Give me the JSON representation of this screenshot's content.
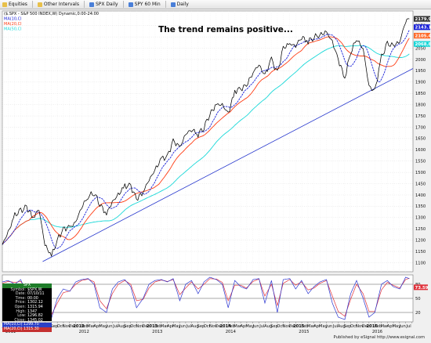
{
  "toolbar": {
    "items": [
      {
        "label": "Equities",
        "icon": "folder-icon"
      },
      {
        "label": "Other Intervals",
        "icon": "folder-icon"
      },
      {
        "label": "SPX Daily",
        "icon": "chart-icon"
      },
      {
        "label": "SPY 60 Min",
        "icon": "chart-icon"
      },
      {
        "label": "Daily",
        "icon": "chart-icon"
      }
    ]
  },
  "chart_title": "The trend remains positive...",
  "legend": {
    "symbol_line": "($.SPX - S&P 500 INDEX,W) Dynamic,0:00-24:00",
    "ma10": "MA(10,Cl",
    "ma20": "MA(20,Cl",
    "ma50": "MA(50,Cl"
  },
  "colors": {
    "price": "#000000",
    "ma10": "#1a22d8",
    "ma20": "#ff3b12",
    "ma50": "#19d8d8",
    "trendline": "#2233cc",
    "oscillator_a": "#2a35d0",
    "oscillator_b": "#e0303a"
  },
  "price_tags": [
    {
      "value": "2179.98",
      "bg": "#333333",
      "fg": "#ffffff"
    },
    {
      "value": "2143.13",
      "bg": "#1a22d8",
      "fg": "#ffffff"
    },
    {
      "value": "2105.46",
      "bg": "#ff6a2a",
      "fg": "#ffffff"
    },
    {
      "value": "2068.81",
      "bg": "#19d8d8",
      "fg": "#ffffff"
    }
  ],
  "info_panel": {
    "header": "SPX",
    "rows": [
      {
        "k": "Symbol",
        "v": "$SPX,W"
      },
      {
        "k": "Date",
        "v": "07/10/11"
      },
      {
        "k": "Time",
        "v": "00:00"
      },
      {
        "k": "Price",
        "v": "1302.12"
      },
      {
        "k": "Open",
        "v": "1315.94"
      },
      {
        "k": "High",
        "v": "1347"
      },
      {
        "k": "Low",
        "v": "1296.82"
      },
      {
        "k": "Close",
        "v": "1345.02"
      }
    ],
    "ma1_label": "MA(10,Cl)",
    "ma1_value": "1299.70",
    "ma2_label": "MA(20,Cl)",
    "ma2_value": "1315.30"
  },
  "oscillator_tag": "73.59",
  "published": "Published by eSignal http://www.esignal.com",
  "chart_data": {
    "type": "line",
    "title": "The trend remains positive...",
    "y_axis_ticks": [
      1100,
      1150,
      1200,
      1250,
      1300,
      1350,
      1400,
      1450,
      1500,
      1550,
      1600,
      1650,
      1700,
      1750,
      1800,
      1850,
      1900,
      1950,
      2000,
      2050,
      2100,
      2150
    ],
    "ylim": [
      1060,
      2215
    ],
    "x_range_years": [
      2011.0,
      2016.6
    ],
    "x_month_labels": [
      "Jan",
      "Mar",
      "May",
      "Jul",
      "Sep",
      "Nov",
      "2012",
      "Mar",
      "May",
      "Jul",
      "Sep",
      "Nov",
      "2013",
      "Mar",
      "May",
      "Jul",
      "Sep",
      "Nov",
      "2014",
      "Mar",
      "May",
      "Jul",
      "Sep",
      "Nov",
      "2015",
      "Mar",
      "May",
      "Jul",
      "Sep",
      "Nov",
      "2016",
      "Mar",
      "May",
      "Jul"
    ],
    "x_year_labels": [
      "2011",
      "2012",
      "2013",
      "2014",
      "2015",
      "2016"
    ],
    "x_month_sequence": [
      "Jan",
      "Feb",
      "Mar",
      "Apr",
      "May",
      "Jun",
      "Jul",
      "Aug",
      "Sep",
      "Oct",
      "Nov",
      "Dec",
      "Jan",
      "Feb",
      "Mar",
      "Apr",
      "May",
      "Jun",
      "Jul",
      "Aug",
      "Sep",
      "Oct",
      "Nov",
      "Dec",
      "Jan",
      "Feb",
      "Mar",
      "Apr",
      "May",
      "Jun",
      "Jul",
      "Aug",
      "Sep",
      "Oct",
      "Nov",
      "Dec",
      "Jan",
      "Feb",
      "Mar",
      "Apr",
      "May",
      "Jun",
      "Jul",
      "Aug",
      "Sep",
      "Oct",
      "Nov",
      "Dec",
      "Jan",
      "Feb",
      "Mar",
      "Apr",
      "May",
      "Jun",
      "Jul",
      "Aug",
      "Sep",
      "Oct",
      "Nov",
      "Dec",
      "Jan",
      "Feb",
      "Mar",
      "Apr",
      "May",
      "Jun",
      "Jul",
      "Aug"
    ],
    "series": [
      {
        "name": "$SPX,W",
        "t": [
          2011.0,
          2011.08,
          2011.17,
          2011.25,
          2011.33,
          2011.42,
          2011.5,
          2011.58,
          2011.67,
          2011.75,
          2011.83,
          2011.92,
          2012.0,
          2012.08,
          2012.17,
          2012.25,
          2012.33,
          2012.42,
          2012.5,
          2012.58,
          2012.67,
          2012.75,
          2012.83,
          2012.92,
          2013.0,
          2013.08,
          2013.17,
          2013.25,
          2013.33,
          2013.42,
          2013.5,
          2013.58,
          2013.67,
          2013.75,
          2013.83,
          2013.92,
          2014.0,
          2014.08,
          2014.17,
          2014.25,
          2014.33,
          2014.42,
          2014.5,
          2014.58,
          2014.67,
          2014.75,
          2014.83,
          2014.92,
          2015.0,
          2015.08,
          2015.17,
          2015.25,
          2015.33,
          2015.42,
          2015.5,
          2015.58,
          2015.67,
          2015.75,
          2015.83,
          2015.92,
          2016.0,
          2016.08,
          2016.17,
          2016.25,
          2016.33,
          2016.42,
          2016.5,
          2016.55
        ],
        "values": [
          1180,
          1235,
          1310,
          1330,
          1345,
          1300,
          1335,
          1180,
          1130,
          1200,
          1250,
          1255,
          1280,
          1345,
          1395,
          1410,
          1360,
          1315,
          1370,
          1400,
          1440,
          1440,
          1380,
          1415,
          1465,
          1510,
          1560,
          1570,
          1640,
          1610,
          1670,
          1690,
          1670,
          1700,
          1760,
          1800,
          1800,
          1760,
          1860,
          1870,
          1885,
          1945,
          1975,
          1930,
          2000,
          1940,
          2050,
          2070,
          2060,
          2100,
          2080,
          2100,
          2110,
          2120,
          2080,
          2000,
          1920,
          2030,
          2090,
          2050,
          1880,
          1860,
          2010,
          2070,
          2060,
          2080,
          2170,
          2180
        ]
      },
      {
        "name": "MA(10,Cl)",
        "derived_from": "$SPX,W",
        "period": 10
      },
      {
        "name": "MA(20,Cl)",
        "derived_from": "$SPX,W",
        "period": 20
      },
      {
        "name": "MA(50,Cl)",
        "derived_from": "$SPX,W",
        "period": 50
      }
    ],
    "trendline": {
      "from": {
        "t": 2011.55,
        "value": 1105
      },
      "to": {
        "t": 2016.6,
        "value": 1960
      }
    },
    "oscillator": {
      "y_ticks": [
        20,
        50,
        80
      ],
      "ylim": [
        0,
        100
      ],
      "series": [
        {
          "name": "%K",
          "values": [
            85,
            88,
            80,
            90,
            60,
            40,
            72,
            10,
            8,
            50,
            70,
            65,
            85,
            90,
            92,
            80,
            30,
            20,
            70,
            85,
            90,
            75,
            30,
            50,
            80,
            88,
            90,
            85,
            92,
            45,
            80,
            88,
            60,
            85,
            95,
            90,
            80,
            30,
            88,
            75,
            70,
            90,
            92,
            40,
            88,
            20,
            90,
            92,
            70,
            88,
            60,
            75,
            85,
            90,
            40,
            10,
            5,
            60,
            88,
            50,
            10,
            20,
            80,
            88,
            75,
            70,
            95,
            92
          ]
        },
        {
          "name": "%D",
          "values": [
            82,
            86,
            84,
            86,
            70,
            50,
            65,
            25,
            15,
            40,
            62,
            66,
            80,
            88,
            91,
            85,
            45,
            28,
            60,
            80,
            88,
            80,
            45,
            48,
            72,
            85,
            89,
            86,
            90,
            58,
            72,
            85,
            70,
            80,
            92,
            91,
            84,
            45,
            78,
            78,
            72,
            86,
            91,
            55,
            80,
            35,
            82,
            90,
            78,
            85,
            68,
            72,
            82,
            88,
            55,
            22,
            12,
            48,
            80,
            60,
            22,
            22,
            68,
            84,
            78,
            72,
            90,
            93
          ]
        }
      ]
    }
  }
}
